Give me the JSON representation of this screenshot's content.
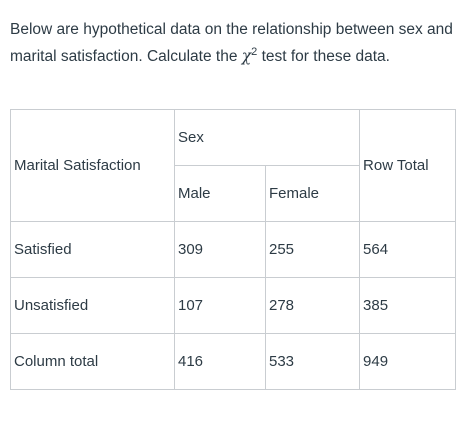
{
  "prompt": {
    "before": "Below are hypothetical data on the relationship between sex and marital satisfaction. Calculate the ",
    "chi_symbol": "χ",
    "superscript": "2",
    "after": " test for these data."
  },
  "table": {
    "row_header_label": "Marital Satisfaction",
    "group_label": "Sex",
    "columns": [
      "Male",
      "Female"
    ],
    "row_total_label": "Row Total",
    "rows": [
      {
        "label": "Satisfied",
        "male": "309",
        "female": "255",
        "total": "564"
      },
      {
        "label": "Unsatisfied",
        "male": "107",
        "female": "278",
        "total": "385"
      },
      {
        "label": "Column total",
        "male": "416",
        "female": "533",
        "total": "949"
      }
    ]
  }
}
